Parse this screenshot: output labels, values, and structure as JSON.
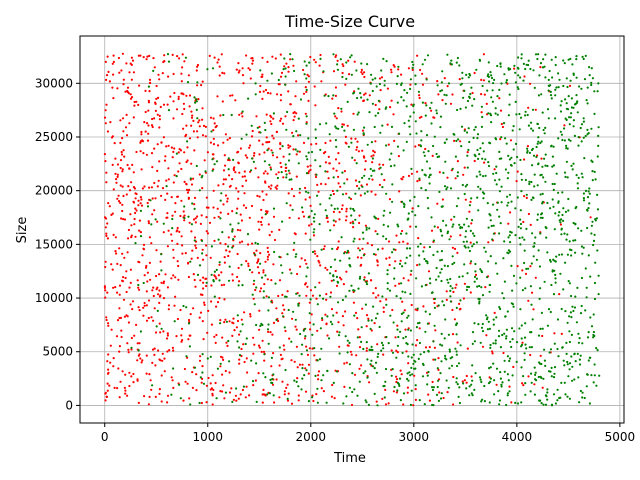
{
  "chart_data": {
    "type": "scatter",
    "title": "Time-Size Curve",
    "xlabel": "Time",
    "ylabel": "Size",
    "xlim": [
      -240,
      5040
    ],
    "ylim": [
      -1638,
      34405
    ],
    "xticks": [
      0,
      1000,
      2000,
      3000,
      4000,
      5000
    ],
    "yticks": [
      0,
      5000,
      10000,
      15000,
      20000,
      25000,
      30000
    ],
    "grid": true,
    "legend": "none",
    "series": [
      {
        "color": "#ff0000",
        "marker": "dot",
        "generator": {
          "count": 1700,
          "x_range": [
            0,
            4800
          ],
          "y_range": [
            0,
            32767
          ],
          "x_density": "decreasing",
          "seed": 7
        }
      },
      {
        "color": "#008000",
        "marker": "dot",
        "generator": {
          "count": 1800,
          "x_range": [
            0,
            4800
          ],
          "y_range": [
            0,
            32767
          ],
          "x_density": "increasing",
          "seed": 13
        }
      }
    ]
  }
}
